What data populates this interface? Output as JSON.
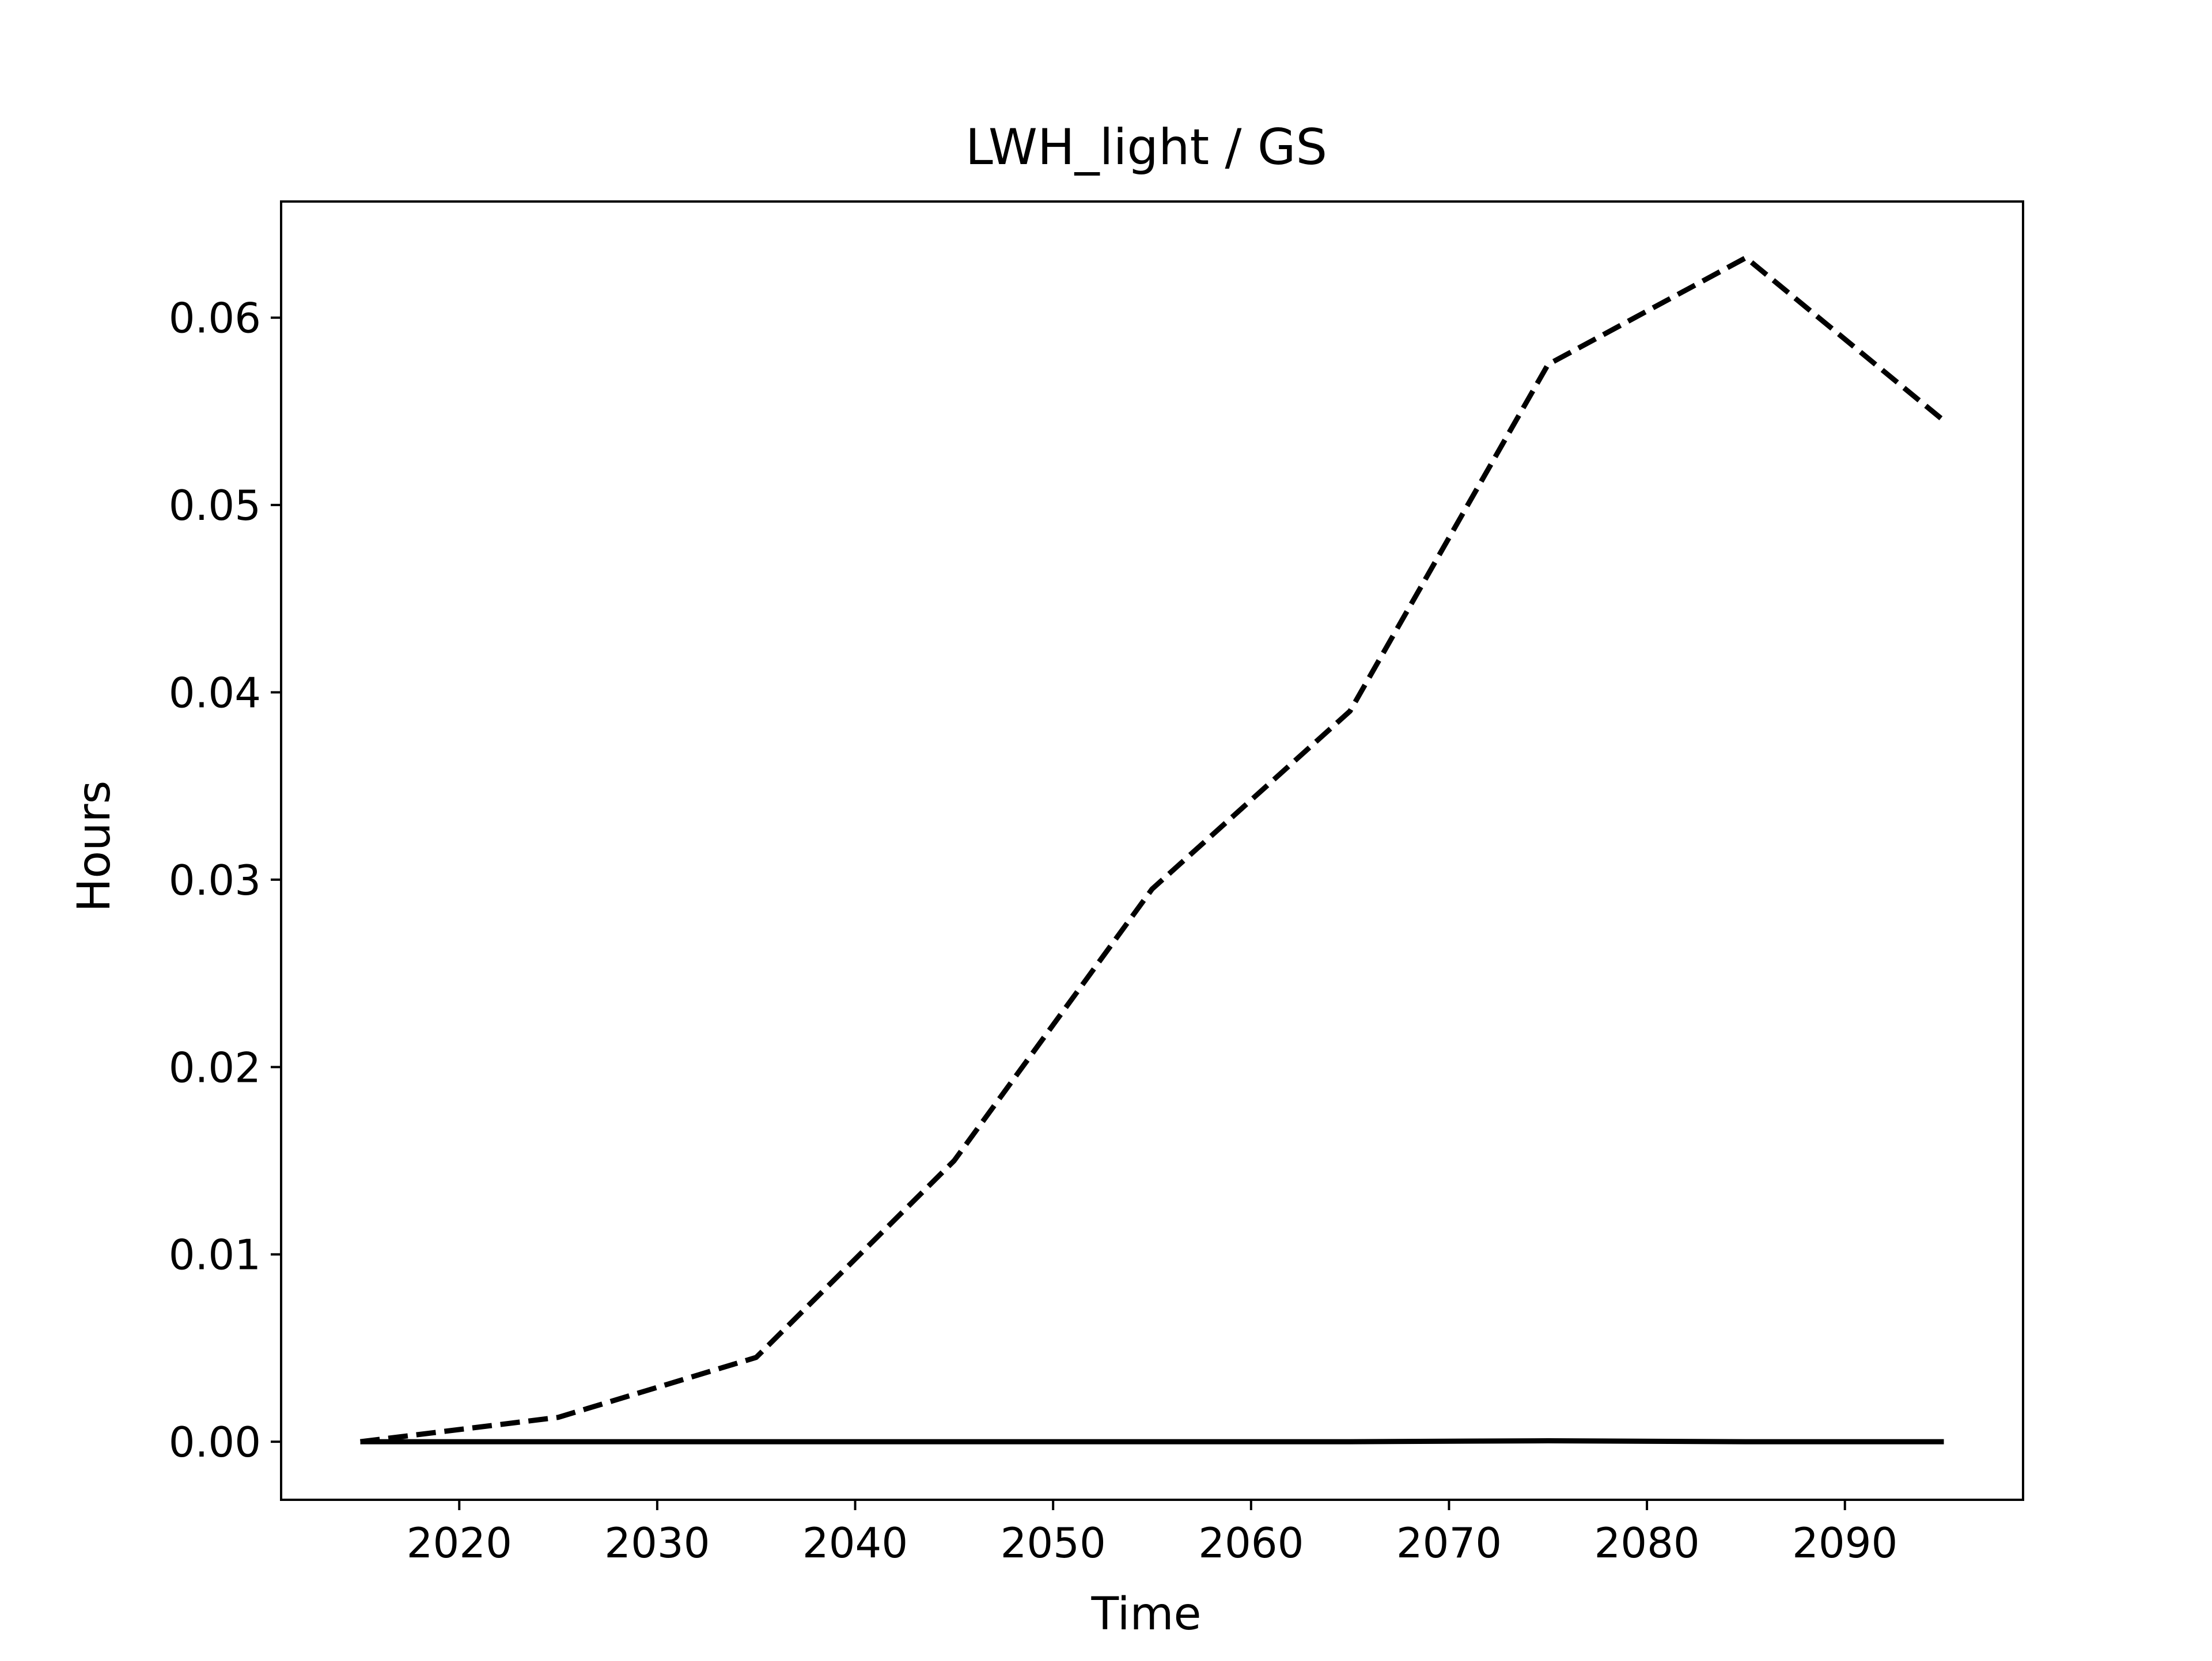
{
  "chart_data": {
    "type": "line",
    "title": "LWH_light / GS",
    "xlabel": "Time",
    "ylabel": "Hours",
    "xlim": [
      2011,
      2099
    ],
    "ylim": [
      -0.0031,
      0.0662
    ],
    "xticks": [
      2020,
      2030,
      2040,
      2050,
      2060,
      2070,
      2080,
      2090
    ],
    "yticks": [
      0.0,
      0.01,
      0.02,
      0.03,
      0.04,
      0.05,
      0.06
    ],
    "ytick_labels": [
      "0.00",
      "0.01",
      "0.02",
      "0.03",
      "0.04",
      "0.05",
      "0.06"
    ],
    "grid": false,
    "series": [
      {
        "style": "dashed",
        "color": "#000000",
        "x": [
          2015,
          2025,
          2035,
          2045,
          2055,
          2065,
          2075,
          2085,
          2095
        ],
        "y": [
          0.0,
          0.0013,
          0.0045,
          0.015,
          0.0295,
          0.039,
          0.0575,
          0.0632,
          0.0545
        ]
      },
      {
        "style": "solid",
        "color": "#000000",
        "x": [
          2015,
          2025,
          2035,
          2045,
          2055,
          2065,
          2075,
          2085,
          2095
        ],
        "y": [
          0.0,
          0.0,
          0.0,
          0.0,
          0.0,
          0.0,
          5e-05,
          0.0,
          0.0
        ]
      }
    ]
  }
}
